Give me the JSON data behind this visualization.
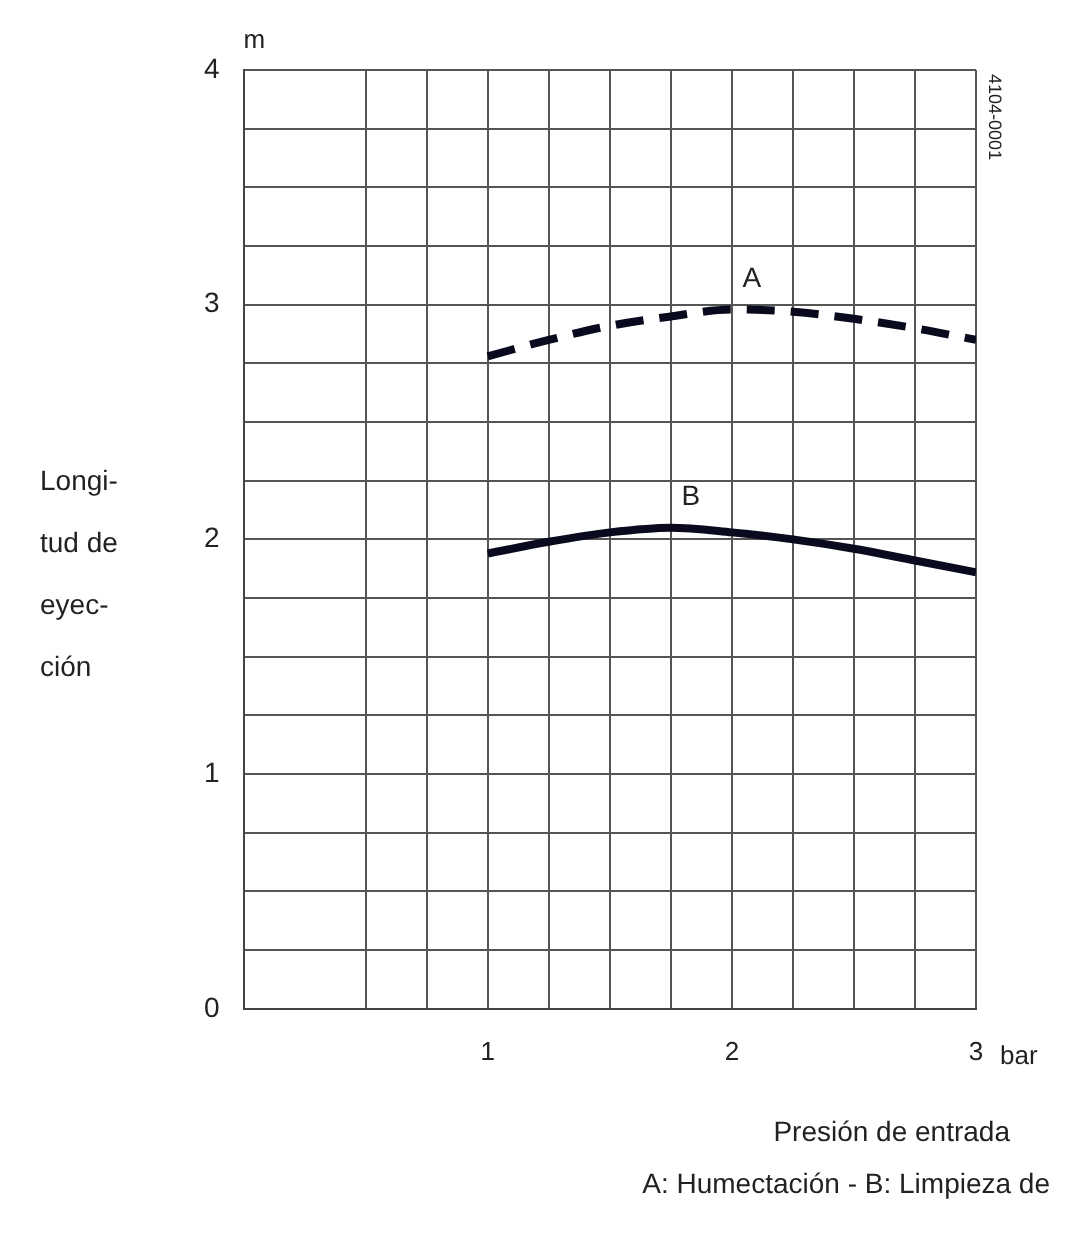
{
  "chart_data": {
    "type": "line",
    "ylabel": "Longi-\ntud de\neyec-\nción",
    "xlabel": "Presión de entrada",
    "annotations": [
      "m",
      "bar",
      "A: Humectación - B: Limpieza de",
      "4104-0001"
    ],
    "x": [
      1,
      1.25,
      1.5,
      1.75,
      2,
      2.25,
      2.5,
      2.75,
      3
    ],
    "series": [
      {
        "name": "A",
        "color": "#0a0a1e",
        "line_style": "dashed",
        "values": [
          2.78,
          2.85,
          2.91,
          2.95,
          2.98,
          2.97,
          2.94,
          2.9,
          2.85
        ]
      },
      {
        "name": "B",
        "color": "#0a0a1e",
        "line_style": "solid",
        "values": [
          1.94,
          1.99,
          2.03,
          2.05,
          2.03,
          2.0,
          1.96,
          1.91,
          1.86
        ]
      }
    ],
    "xlim": [
      0,
      3
    ],
    "xticks": [
      {
        "value": 0.5,
        "label": null
      },
      {
        "value": 0.75,
        "label": null
      },
      1,
      {
        "value": 1.25,
        "label": null
      },
      {
        "value": 1.5,
        "label": null
      },
      {
        "value": 1.75,
        "label": null
      },
      2,
      {
        "value": 2.25,
        "label": null
      },
      {
        "value": 2.5,
        "label": null
      },
      {
        "value": 2.75,
        "label": null
      },
      3
    ],
    "ylim": [
      0,
      4
    ],
    "yticks": [
      0,
      {
        "value": 0.25,
        "label": null
      },
      {
        "value": 0.5,
        "label": null
      },
      {
        "value": 0.75,
        "label": null
      },
      1,
      {
        "value": 1.25,
        "label": null
      },
      {
        "value": 1.5,
        "label": null
      },
      {
        "value": 1.75,
        "label": null
      },
      2,
      {
        "value": 2.25,
        "label": null
      },
      {
        "value": 2.5,
        "label": null
      },
      {
        "value": 2.75,
        "label": null
      },
      3,
      {
        "value": 3.25,
        "label": null
      },
      {
        "value": 3.5,
        "label": null
      },
      {
        "value": 3.75,
        "label": null
      },
      4
    ],
    "grid": true,
    "legend": false,
    "marker": "none"
  }
}
